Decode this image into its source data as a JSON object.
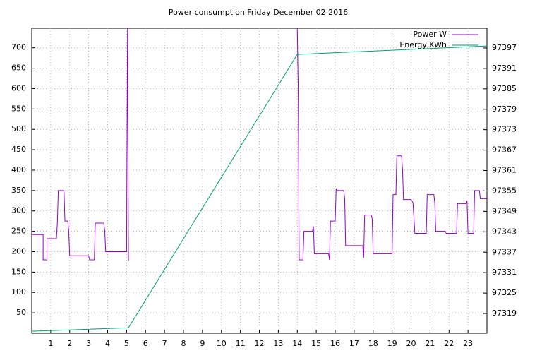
{
  "chart_data": {
    "type": "line",
    "title": "Power consumption Friday December 02 2016",
    "xlim": [
      0,
      24
    ],
    "xticks": [
      1,
      2,
      3,
      4,
      5,
      6,
      7,
      8,
      9,
      10,
      11,
      12,
      13,
      14,
      15,
      16,
      17,
      18,
      19,
      20,
      21,
      22,
      23
    ],
    "ylim": [
      0,
      748
    ],
    "yticks": [
      50,
      100,
      150,
      200,
      250,
      300,
      350,
      400,
      450,
      500,
      550,
      600,
      650,
      700
    ],
    "y2lim": [
      97313.2,
      97402.8
    ],
    "y2ticks": [
      97319,
      97325,
      97331,
      97337,
      97343,
      97349,
      97355,
      97361,
      97367,
      97373,
      97379,
      97385,
      97391,
      97397
    ],
    "grid": true,
    "legend": "top-right",
    "series": [
      {
        "name": "Power W",
        "color": "#9400d3",
        "x": [
          0,
          0.6,
          0.6,
          0.8,
          0.8,
          1.3,
          1.35,
          1.4,
          1.7,
          1.75,
          1.9,
          1.95,
          2.0,
          3.0,
          3.05,
          3.3,
          3.35,
          3.8,
          3.85,
          3.9,
          5.0,
          5.05,
          5.1,
          9.5,
          14.0,
          14.05,
          14.1,
          14.3,
          14.35,
          14.8,
          14.85,
          14.9,
          15.65,
          15.7,
          15.75,
          16.0,
          16.05,
          16.1,
          16.45,
          16.5,
          16.55,
          17.45,
          17.5,
          17.55,
          17.9,
          17.95,
          18.0,
          19.0,
          19.05,
          19.2,
          19.25,
          19.5,
          19.55,
          19.6,
          20.0,
          20.1,
          20.2,
          20.8,
          20.85,
          21.2,
          21.25,
          21.3,
          21.8,
          21.85,
          22.4,
          22.45,
          22.9,
          22.95,
          23.0,
          23.3,
          23.35,
          23.6,
          23.65,
          24.0
        ],
        "values": [
          242,
          242,
          180,
          180,
          232,
          232,
          270,
          350,
          350,
          275,
          275,
          250,
          190,
          190,
          180,
          180,
          270,
          270,
          250,
          200,
          200,
          748,
          178,
          null,
          748,
          600,
          180,
          180,
          250,
          250,
          262,
          195,
          195,
          180,
          275,
          275,
          355,
          350,
          350,
          330,
          215,
          215,
          185,
          290,
          290,
          280,
          195,
          195,
          340,
          340,
          435,
          435,
          400,
          328,
          328,
          320,
          245,
          245,
          340,
          340,
          320,
          250,
          250,
          245,
          245,
          318,
          318,
          325,
          245,
          245,
          350,
          350,
          330,
          330
        ]
      },
      {
        "name": "Energy KWh",
        "color": "#009e73",
        "axis": "y2",
        "x": [
          0,
          5.1,
          14.0,
          24.0
        ],
        "values": [
          97313.8,
          97314.8,
          97395.1,
          97397.6
        ]
      }
    ]
  }
}
